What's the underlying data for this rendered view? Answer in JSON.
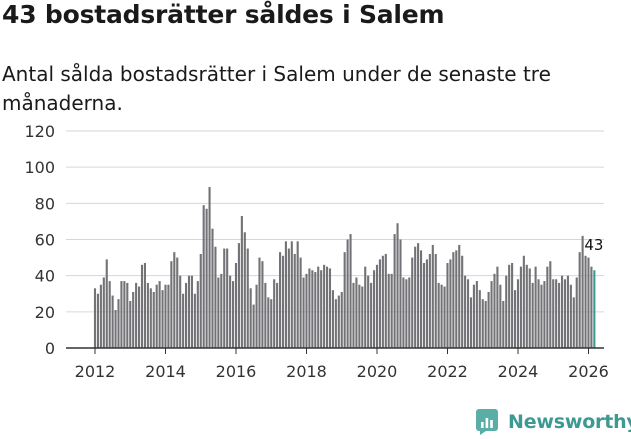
{
  "header": {
    "title": "43 bostadsrätter såldes i Salem",
    "subtitle": "Antal sålda bostadsrätter i Salem under de senaste tre månaderna."
  },
  "brand": {
    "name": "Newsworthy"
  },
  "colors": {
    "bar": "#737276",
    "highlight": "#3a9a8f",
    "grid": "#d6d6d6",
    "axis": "#333333",
    "brand": "#3d9a92"
  },
  "chart_data": {
    "type": "bar",
    "title": "43 bostadsrätter såldes i Salem",
    "subtitle": "Antal sålda bostadsrätter i Salem under de senaste tre månaderna.",
    "xlabel": "",
    "ylabel": "",
    "ylim": [
      0,
      120
    ],
    "yticks": [
      0,
      20,
      40,
      60,
      80,
      100,
      120
    ],
    "xticks": [
      "2012",
      "2014",
      "2016",
      "2018",
      "2020",
      "2022",
      "2024",
      "2026"
    ],
    "grid": true,
    "x_start": 2012.0,
    "step": 0.08333,
    "highlight_last": true,
    "last_label": "43",
    "values": [
      33,
      30,
      35,
      39,
      49,
      37,
      29,
      21,
      27,
      37,
      37,
      36,
      26,
      31,
      36,
      34,
      46,
      47,
      36,
      33,
      31,
      35,
      37,
      32,
      35,
      35,
      48,
      53,
      50,
      40,
      30,
      36,
      40,
      40,
      30,
      37,
      52,
      79,
      77,
      89,
      66,
      56,
      39,
      41,
      55,
      55,
      40,
      37,
      47,
      58,
      73,
      64,
      55,
      33,
      24,
      35,
      50,
      48,
      36,
      28,
      27,
      38,
      36,
      53,
      51,
      59,
      55,
      59,
      52,
      59,
      50,
      39,
      41,
      44,
      43,
      42,
      45,
      43,
      46,
      45,
      44,
      32,
      27,
      29,
      31,
      53,
      60,
      63,
      36,
      39,
      35,
      34,
      45,
      40,
      36,
      43,
      46,
      49,
      51,
      52,
      41,
      41,
      63,
      69,
      60,
      39,
      38,
      39,
      50,
      56,
      58,
      54,
      47,
      49,
      52,
      57,
      52,
      36,
      35,
      34,
      47,
      49,
      53,
      54,
      57,
      51,
      40,
      38,
      28,
      35,
      37,
      32,
      27,
      26,
      31,
      37,
      41,
      45,
      35,
      26,
      40,
      46,
      47,
      32,
      38,
      45,
      51,
      46,
      44,
      36,
      45,
      38,
      35,
      37,
      45,
      48,
      38,
      38,
      36,
      40,
      38,
      40,
      35,
      28,
      39,
      53,
      62,
      51,
      50,
      45,
      43
    ]
  }
}
